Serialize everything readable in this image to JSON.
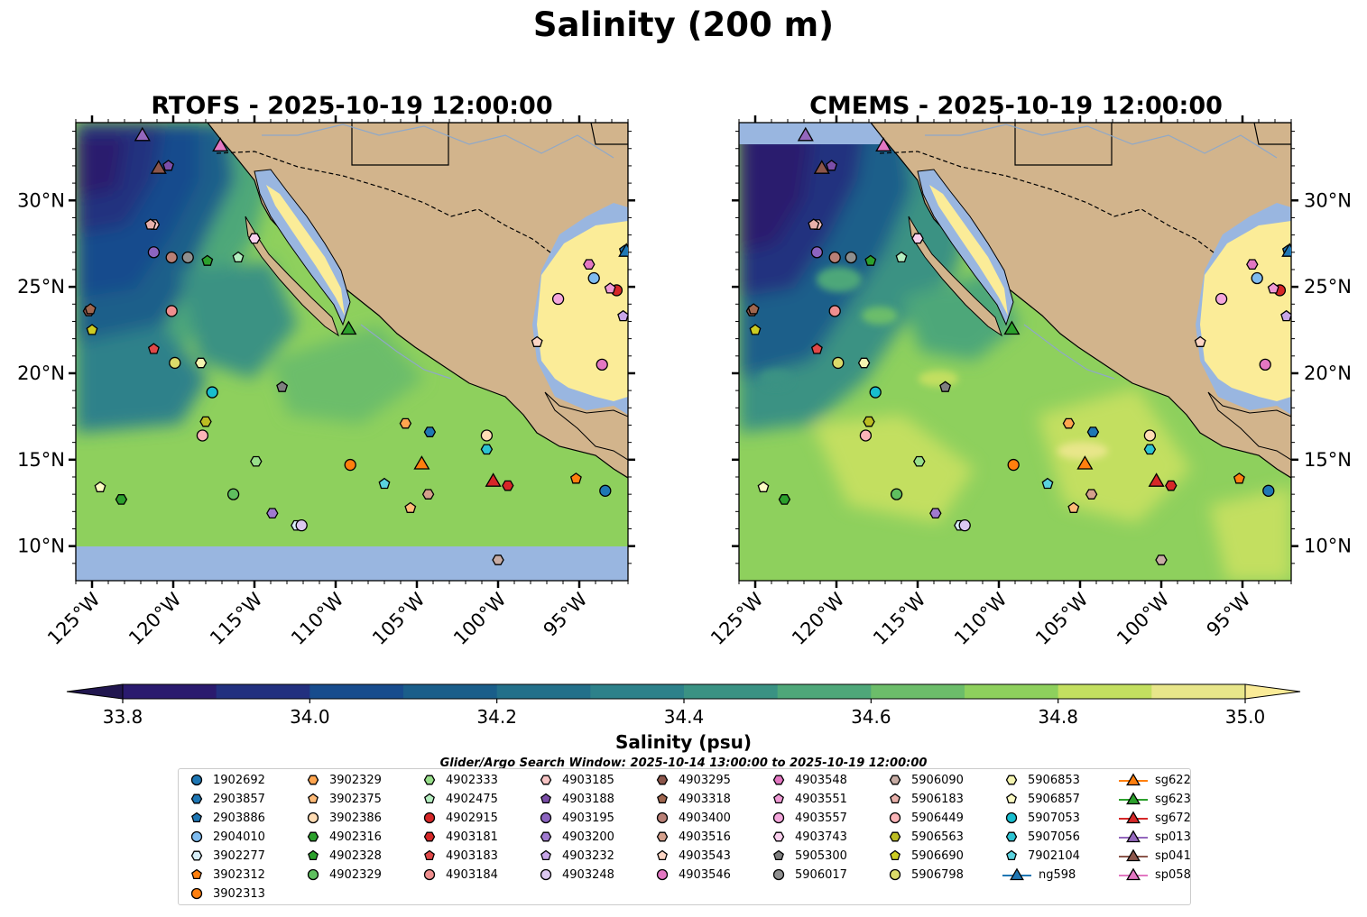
{
  "figure_title": "Salinity (200 m)",
  "chart_data": [
    {
      "type": "map-contour",
      "title": "RTOFS - 2025-10-19 12:00:00",
      "variable": "Salinity (psu)",
      "lon_range": [
        -126,
        -92
      ],
      "lat_range": [
        8,
        34.5
      ],
      "lon_ticks": [
        "125°W",
        "120°W",
        "115°W",
        "110°W",
        "105°W",
        "100°W",
        "95°W"
      ],
      "lat_ticks": [
        "10°N",
        "15°N",
        "20°N",
        "25°N",
        "30°N"
      ],
      "model_southern_limit_lat": 10.2
    },
    {
      "type": "map-contour",
      "title": "CMEMS - 2025-10-19 12:00:00",
      "variable": "Salinity (psu)",
      "lon_range": [
        -126,
        -92
      ],
      "lat_range": [
        8,
        34.5
      ],
      "lon_ticks": [
        "125°W",
        "120°W",
        "115°W",
        "110°W",
        "105°W",
        "100°W",
        "95°W"
      ],
      "lat_ticks": [
        "10°N",
        "15°N",
        "20°N",
        "25°N",
        "30°N"
      ]
    }
  ],
  "colorbar": {
    "label": "Salinity (psu)",
    "min": 33.7,
    "max": 35.0,
    "ticks": [
      "33.8",
      "34.0",
      "34.2",
      "34.4",
      "34.6",
      "34.8",
      "35.0"
    ],
    "levels": [
      {
        "from": 33.8,
        "to": 33.9,
        "color": "#2a1a6e"
      },
      {
        "from": 33.9,
        "to": 34.0,
        "color": "#22307f"
      },
      {
        "from": 34.0,
        "to": 34.1,
        "color": "#174c8d"
      },
      {
        "from": 34.1,
        "to": 34.2,
        "color": "#1a5e8a"
      },
      {
        "from": 34.2,
        "to": 34.3,
        "color": "#23708a"
      },
      {
        "from": 34.3,
        "to": 34.4,
        "color": "#2d818a"
      },
      {
        "from": 34.4,
        "to": 34.5,
        "color": "#3a9283"
      },
      {
        "from": 34.5,
        "to": 34.6,
        "color": "#4ea779"
      },
      {
        "from": 34.6,
        "to": 34.7,
        "color": "#6cbd6a"
      },
      {
        "from": 34.7,
        "to": 34.8,
        "color": "#8ed05d"
      },
      {
        "from": 34.8,
        "to": 34.9,
        "color": "#c3df60"
      },
      {
        "from": 34.9,
        "to": 35.0,
        "color": "#e8e68a"
      }
    ],
    "under_color": "#21164f",
    "over_color": "#faeb97"
  },
  "search_window": "Glider/Argo Search Window: 2025-10-14 13:00:00 to 2025-10-19 12:00:00",
  "colors": {
    "land": "#d2b48c",
    "water_mask": "#99b6e0",
    "high_sal": "#fbec98"
  },
  "platforms": [
    {
      "id": "1902692",
      "shape": "circle",
      "color": "#1f77b4",
      "lon": -93.4,
      "lat": 13.2
    },
    {
      "id": "2903857",
      "shape": "hexagon",
      "color": "#1f77b4",
      "lon": -104.2,
      "lat": 16.6
    },
    {
      "id": "2903886",
      "shape": "pentagon",
      "color": "#1f77b4",
      "lon": -92.2,
      "lat": 27.1
    },
    {
      "id": "2904010",
      "shape": "circle",
      "color": "#7fbcf0",
      "lon": -94.1,
      "lat": 25.5
    },
    {
      "id": "3902277",
      "shape": "hexagon",
      "color": "#d7eef7",
      "lon": -112.4,
      "lat": 11.2
    },
    {
      "id": "3902312",
      "shape": "pentagon",
      "color": "#ff7f0e",
      "lon": -95.2,
      "lat": 13.9
    },
    {
      "id": "3902313",
      "shape": "circle",
      "color": "#ff7f0e",
      "lon": -109.1,
      "lat": 14.7
    },
    {
      "id": "3902329",
      "shape": "hexagon",
      "color": "#ffa54f",
      "lon": -105.7,
      "lat": 17.1
    },
    {
      "id": "3902375",
      "shape": "pentagon",
      "color": "#ffbb78",
      "lon": -105.4,
      "lat": 12.2
    },
    {
      "id": "3902386",
      "shape": "circle",
      "color": "#ffdcb4",
      "lon": -100.7,
      "lat": 16.4
    },
    {
      "id": "4902316",
      "shape": "hexagon",
      "color": "#2ca02c",
      "lon": -123.2,
      "lat": 12.7
    },
    {
      "id": "4902328",
      "shape": "pentagon",
      "color": "#2ca02c",
      "lon": -117.9,
      "lat": 26.5
    },
    {
      "id": "4902329",
      "shape": "circle",
      "color": "#5fbf5f",
      "lon": -116.3,
      "lat": 13.0
    },
    {
      "id": "4902333",
      "shape": "hexagon",
      "color": "#98df8a",
      "lon": -114.9,
      "lat": 14.9
    },
    {
      "id": "4902475",
      "shape": "pentagon",
      "color": "#b5eec0",
      "lon": -116.0,
      "lat": 26.7
    },
    {
      "id": "4902915",
      "shape": "circle",
      "color": "#d62728",
      "lon": -92.7,
      "lat": 24.8
    },
    {
      "id": "4903181",
      "shape": "hexagon",
      "color": "#d62728",
      "lon": -99.4,
      "lat": 13.5
    },
    {
      "id": "4903183",
      "shape": "pentagon",
      "color": "#e04848",
      "lon": -121.2,
      "lat": 21.4
    },
    {
      "id": "4903184",
      "shape": "circle",
      "color": "#ef8e8e",
      "lon": -120.1,
      "lat": 23.6
    },
    {
      "id": "4903185",
      "shape": "hexagon",
      "color": "#f7c4c4",
      "lon": -121.2,
      "lat": 28.6
    },
    {
      "id": "4903188",
      "shape": "pentagon",
      "color": "#7b4ea8",
      "lon": -120.3,
      "lat": 32.0
    },
    {
      "id": "4903195",
      "shape": "circle",
      "color": "#8c64c0",
      "lon": -121.2,
      "lat": 27.0
    },
    {
      "id": "4903200",
      "shape": "hexagon",
      "color": "#a07ad0",
      "lon": -113.9,
      "lat": 11.9
    },
    {
      "id": "4903232",
      "shape": "pentagon",
      "color": "#c8a6e8",
      "lon": -92.3,
      "lat": 23.3
    },
    {
      "id": "4903248",
      "shape": "circle",
      "color": "#dcc8f0",
      "lon": -112.1,
      "lat": 11.2
    },
    {
      "id": "4903295",
      "shape": "hexagon",
      "color": "#8c564b",
      "lon": -125.2,
      "lat": 23.6
    },
    {
      "id": "4903318",
      "shape": "pentagon",
      "color": "#a0664f",
      "lon": -125.1,
      "lat": 23.7
    },
    {
      "id": "4903400",
      "shape": "circle",
      "color": "#b98076",
      "lon": -120.1,
      "lat": 26.7
    },
    {
      "id": "4903516",
      "shape": "hexagon",
      "color": "#d4a08c",
      "lon": -104.3,
      "lat": 13.0
    },
    {
      "id": "4903543",
      "shape": "pentagon",
      "color": "#fcd5c4",
      "lon": -97.6,
      "lat": 21.8
    },
    {
      "id": "4903546",
      "shape": "circle",
      "color": "#e377c2",
      "lon": -93.6,
      "lat": 20.5
    },
    {
      "id": "4903548",
      "shape": "hexagon",
      "color": "#e377c2",
      "lon": -94.4,
      "lat": 26.3
    },
    {
      "id": "4903551",
      "shape": "pentagon",
      "color": "#f09ad6",
      "lon": -93.1,
      "lat": 24.9
    },
    {
      "id": "4903557",
      "shape": "circle",
      "color": "#f4a6dc",
      "lon": -96.3,
      "lat": 24.3
    },
    {
      "id": "4903743",
      "shape": "hexagon",
      "color": "#fad0ee",
      "lon": -115.0,
      "lat": 27.8
    },
    {
      "id": "5905300",
      "shape": "pentagon",
      "color": "#7f7f7f",
      "lon": -113.3,
      "lat": 19.2
    },
    {
      "id": "5906017",
      "shape": "circle",
      "color": "#8f8f8f",
      "lon": -119.1,
      "lat": 26.7
    },
    {
      "id": "5906090",
      "shape": "hexagon",
      "color": "#c7aca4",
      "lon": -100.0,
      "lat": 9.2
    },
    {
      "id": "5906183",
      "shape": "pentagon",
      "color": "#e8b0aa",
      "lon": -121.4,
      "lat": 28.6
    },
    {
      "id": "5906449",
      "shape": "circle",
      "color": "#fbb4b8",
      "lon": -118.2,
      "lat": 16.4
    },
    {
      "id": "5906563",
      "shape": "hexagon",
      "color": "#bcbd22",
      "lon": -118.0,
      "lat": 17.2
    },
    {
      "id": "5906690",
      "shape": "pentagon",
      "color": "#cccc22",
      "lon": -125.0,
      "lat": 22.5
    },
    {
      "id": "5906798",
      "shape": "circle",
      "color": "#dbdb6a",
      "lon": -119.9,
      "lat": 20.6
    },
    {
      "id": "5906853",
      "shape": "hexagon",
      "color": "#f4f4b0",
      "lon": -118.3,
      "lat": 20.6
    },
    {
      "id": "5906857",
      "shape": "pentagon",
      "color": "#fdfcc4",
      "lon": -124.5,
      "lat": 13.4
    },
    {
      "id": "5907053",
      "shape": "circle",
      "color": "#17becf",
      "lon": -117.6,
      "lat": 18.9
    },
    {
      "id": "5907056",
      "shape": "hexagon",
      "color": "#2cc3d2",
      "lon": -100.7,
      "lat": 15.6
    },
    {
      "id": "7902104",
      "shape": "pentagon",
      "color": "#5ad2de",
      "lon": -107.0,
      "lat": 13.6
    },
    {
      "id": "ng598",
      "shape": "triangle",
      "color": "#1f77b4",
      "lon": -92.1,
      "lat": 27.1
    },
    {
      "id": "sg622",
      "shape": "triangle",
      "color": "#ff7f0e",
      "lon": -104.7,
      "lat": 14.8
    },
    {
      "id": "sg623",
      "shape": "triangle",
      "color": "#2ca02c",
      "lon": -109.2,
      "lat": 22.6
    },
    {
      "id": "sg672",
      "shape": "triangle",
      "color": "#d62728",
      "lon": -100.3,
      "lat": 13.8
    },
    {
      "id": "sp013",
      "shape": "triangle",
      "color": "#9467bd",
      "lon": -121.9,
      "lat": 33.8
    },
    {
      "id": "sp041",
      "shape": "triangle",
      "color": "#8c564b",
      "lon": -120.9,
      "lat": 31.9
    },
    {
      "id": "sp058",
      "shape": "triangle",
      "color": "#e377c2",
      "lon": -117.1,
      "lat": 33.2
    }
  ]
}
